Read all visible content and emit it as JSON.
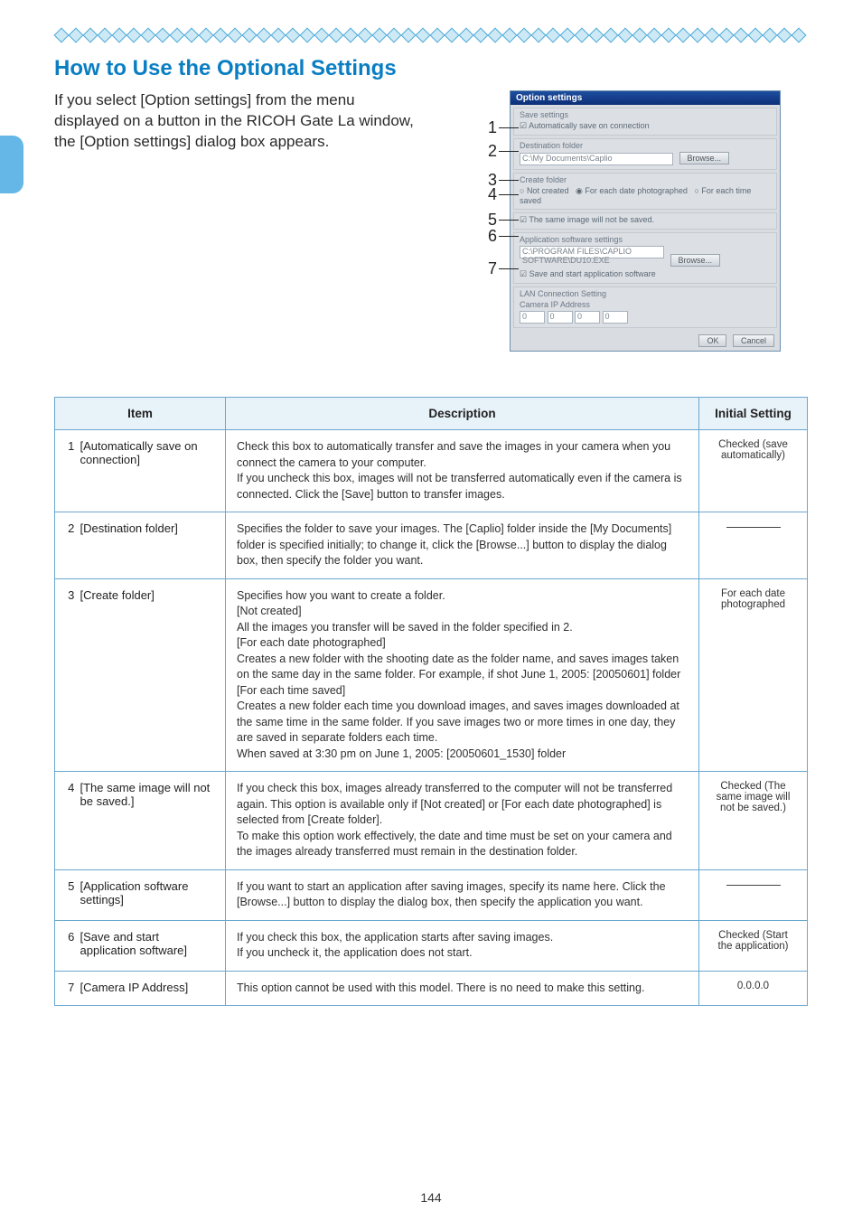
{
  "page_number": "144",
  "colors": {
    "accent": "#0a7ec2",
    "table_border": "#6aa7d0",
    "header_bg": "#e8f2f9",
    "diamond_border": "#4aa8d8",
    "diamond_fill": "#cde9f5"
  },
  "heading": "How to Use the Optional Settings",
  "intro": "If you select [Option settings] from the menu displayed on a button in the RICOH Gate La window, the [Option settings] dialog box appears.",
  "screenshot": {
    "title": "Option settings",
    "save_settings_label": "Save settings",
    "auto_save_check": "Automatically save on connection",
    "dest_folder_label": "Destination folder",
    "dest_folder_value": "C:\\My Documents\\Caplio",
    "browse_btn": "Browse...",
    "create_folder_label": "Create folder",
    "radio1": "Not created",
    "radio2": "For each date photographed",
    "radio3": "For each time saved",
    "same_image_check": "The same image will not be saved.",
    "app_sw_label": "Application software settings",
    "app_sw_value": "C:\\PROGRAM FILES\\CAPLIO SOFTWARE\\DU10.EXE",
    "save_start_check": "Save and start application software",
    "lan_label": "LAN Connection Setting",
    "camera_ip_label": "Camera IP Address",
    "ok_btn": "OK",
    "cancel_btn": "Cancel",
    "callouts": [
      "1",
      "2",
      "3",
      "4",
      "5",
      "6",
      "7"
    ]
  },
  "table": {
    "headers": {
      "item": "Item",
      "desc": "Description",
      "init": "Initial Setting"
    },
    "rows": [
      {
        "num": "1",
        "item": "[Automatically save on connection]",
        "desc": "Check this box to automatically transfer and save the images in your camera when you connect the camera to your computer.\nIf you uncheck this box, images will not be transferred automatically even if the camera is connected. Click the [Save] button to transfer images.",
        "init": "Checked (save automatically)"
      },
      {
        "num": "2",
        "item": "[Destination folder]",
        "desc": "Specifies the folder to save your images. The [Caplio] folder inside the [My Documents] folder is specified initially; to change it, click the [Browse...] button to display the dialog box, then specify the folder you want.",
        "init": ""
      },
      {
        "num": "3",
        "item": "[Create folder]",
        "desc": "Specifies how you want to create a folder.\n[Not created]\nAll the images you transfer will be saved in the folder specified in 2.\n[For each date photographed]\nCreates a new folder with the shooting date as the folder name, and saves images taken on the same day in the same folder. For example, if shot June 1, 2005: [20050601] folder\n[For each time saved]\nCreates a new folder each time you download images, and saves images downloaded at the same time in the same folder. If you save images two or more times in one day, they are saved in separate folders each time.\nWhen saved at 3:30 pm on June 1, 2005: [20050601_1530] folder",
        "init": "For each date photographed"
      },
      {
        "num": "4",
        "item": "[The same image will not be saved.]",
        "desc": "If you check this box, images already transferred to the computer will not be transferred again. This option is available only if [Not created] or [For each date photographed] is selected from [Create folder].\nTo make this option work effectively, the date and time must be set on your camera and the images already transferred must remain in the destination folder.",
        "init": "Checked (The same image will not be saved.)"
      },
      {
        "num": "5",
        "item": "[Application software settings]",
        "desc": "If you want to start an application after saving images, specify its name here. Click the [Browse...] button to display the dialog box, then specify the application you want.",
        "init": ""
      },
      {
        "num": "6",
        "item": "[Save and start application software]",
        "desc": "If you check this box, the application starts after saving images.\nIf you uncheck it, the application does not start.",
        "init": "Checked (Start the application)"
      },
      {
        "num": "7",
        "item": "[Camera IP Address]",
        "desc": "This option cannot be used with this model. There is no need to make this setting.",
        "init": "0.0.0.0"
      }
    ]
  }
}
